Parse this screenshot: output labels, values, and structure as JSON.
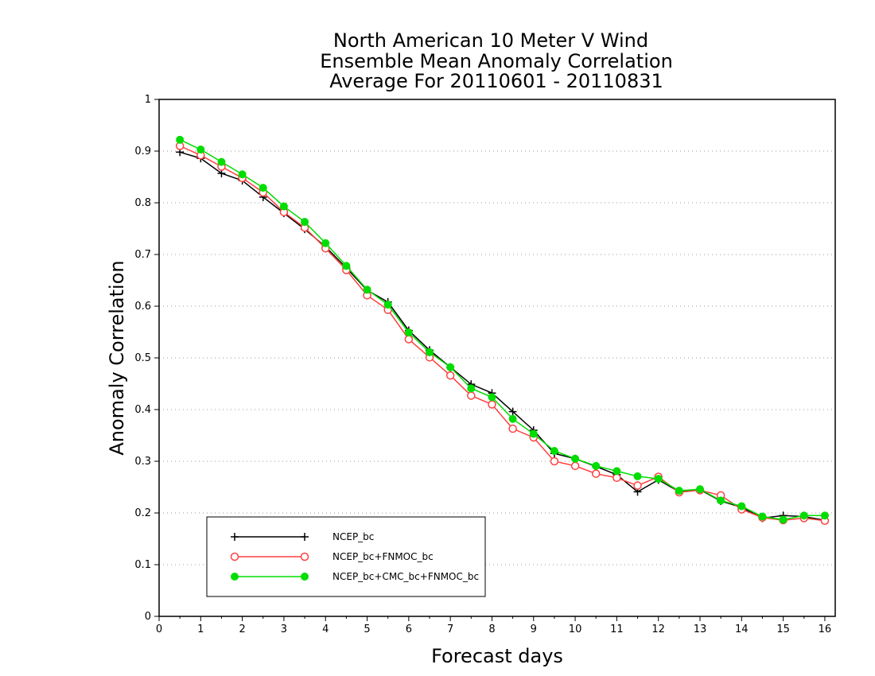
{
  "chart_data": {
    "type": "line",
    "title": [
      "North American 10 Meter V Wind",
      "Ensemble Mean Anomaly Correlation",
      "Average For 20110601 - 20110831"
    ],
    "xlabel": "Forecast days",
    "ylabel": "Anomaly Correlation",
    "xlim": [
      0,
      16.25
    ],
    "ylim": [
      0,
      1
    ],
    "xticks": [
      0,
      1,
      2,
      3,
      4,
      5,
      6,
      7,
      8,
      9,
      10,
      11,
      12,
      13,
      14,
      15,
      16
    ],
    "yticks": [
      0,
      0.1,
      0.2,
      0.3,
      0.4,
      0.5,
      0.6,
      0.7,
      0.8,
      0.9,
      1
    ],
    "ytick_labels": [
      "0",
      "0.1",
      "0.2",
      "0.3",
      "0.4",
      "0.5",
      "0.6",
      "0.7",
      "0.8",
      "0.9",
      "1"
    ],
    "grid": true,
    "legend_position": "bottom-left",
    "x": [
      0.5,
      1,
      1.5,
      2,
      2.5,
      3,
      3.5,
      4,
      4.5,
      5,
      5.5,
      6,
      6.5,
      7,
      7.5,
      8,
      8.5,
      9,
      9.5,
      10,
      10.5,
      11,
      11.5,
      12,
      12.5,
      13,
      13.5,
      14,
      14.5,
      15,
      15.5,
      16
    ],
    "series": [
      {
        "name": "NCEP_bc",
        "color": "#000000",
        "marker": "plus",
        "values": [
          0.898,
          0.886,
          0.857,
          0.843,
          0.811,
          0.78,
          0.749,
          0.715,
          0.674,
          0.631,
          0.608,
          0.553,
          0.515,
          0.482,
          0.449,
          0.432,
          0.396,
          0.36,
          0.315,
          0.305,
          0.29,
          0.274,
          0.241,
          0.264,
          0.241,
          0.245,
          0.223,
          0.211,
          0.19,
          0.195,
          0.193,
          0.186
        ]
      },
      {
        "name": "NCEP_bc+FNMOC_bc",
        "color": "#ff4040",
        "marker": "open-circle",
        "values": [
          0.91,
          0.892,
          0.87,
          0.848,
          0.82,
          0.782,
          0.752,
          0.712,
          0.67,
          0.621,
          0.593,
          0.536,
          0.501,
          0.466,
          0.427,
          0.41,
          0.363,
          0.346,
          0.3,
          0.291,
          0.276,
          0.268,
          0.253,
          0.27,
          0.24,
          0.244,
          0.234,
          0.207,
          0.191,
          0.186,
          0.19,
          0.185
        ]
      },
      {
        "name": "NCEP_bc+CMC_bc+FNMOC_bc",
        "color": "#00dd00",
        "marker": "filled-circle",
        "values": [
          0.922,
          0.903,
          0.879,
          0.855,
          0.829,
          0.793,
          0.763,
          0.722,
          0.678,
          0.632,
          0.603,
          0.549,
          0.511,
          0.482,
          0.441,
          0.424,
          0.382,
          0.353,
          0.32,
          0.305,
          0.291,
          0.281,
          0.271,
          0.266,
          0.243,
          0.246,
          0.224,
          0.213,
          0.193,
          0.187,
          0.195,
          0.195
        ]
      }
    ]
  }
}
